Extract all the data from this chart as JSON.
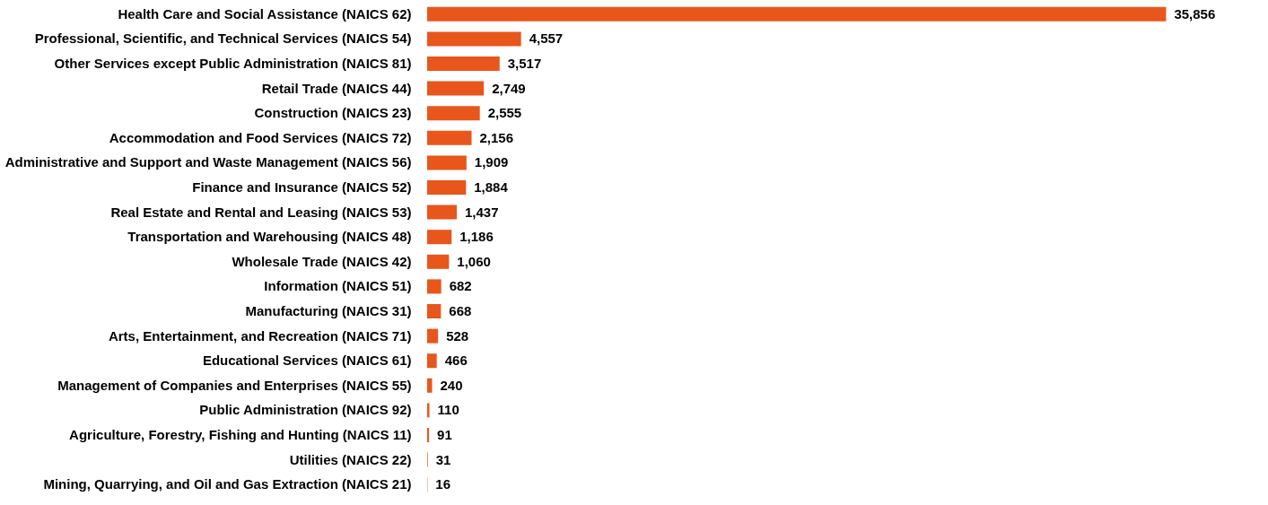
{
  "chart_data": {
    "type": "bar",
    "orientation": "horizontal",
    "categories": [
      "Health Care and Social Assistance (NAICS 62)",
      "Professional, Scientific, and Technical Services (NAICS 54)",
      "Other Services except Public Administration (NAICS 81)",
      "Retail Trade (NAICS 44)",
      "Construction (NAICS 23)",
      "Accommodation and Food Services (NAICS 72)",
      "Administrative and Support and Waste Management (NAICS 56)",
      "Finance and Insurance (NAICS 52)",
      "Real Estate and Rental and Leasing (NAICS 53)",
      "Transportation and Warehousing (NAICS 48)",
      "Wholesale Trade (NAICS 42)",
      "Information (NAICS 51)",
      "Manufacturing (NAICS 31)",
      "Arts, Entertainment, and Recreation (NAICS 71)",
      "Educational Services (NAICS 61)",
      "Management of Companies and Enterprises (NAICS 55)",
      "Public Administration (NAICS 92)",
      "Agriculture, Forestry, Fishing and Hunting (NAICS 11)",
      "Utilities (NAICS 22)",
      "Mining, Quarrying, and Oil and Gas Extraction (NAICS 21)"
    ],
    "values": [
      35856,
      4557,
      3517,
      2749,
      2555,
      2156,
      1909,
      1884,
      1437,
      1186,
      1060,
      682,
      668,
      528,
      466,
      240,
      110,
      91,
      31,
      16
    ],
    "value_labels": [
      "35,856",
      "4,557",
      "3,517",
      "2,749",
      "2,555",
      "2,156",
      "1,909",
      "1,884",
      "1,437",
      "1,186",
      "1,060",
      "682",
      "668",
      "528",
      "466",
      "240",
      "110",
      "91",
      "31",
      "16"
    ],
    "color": "#e8561c"
  }
}
